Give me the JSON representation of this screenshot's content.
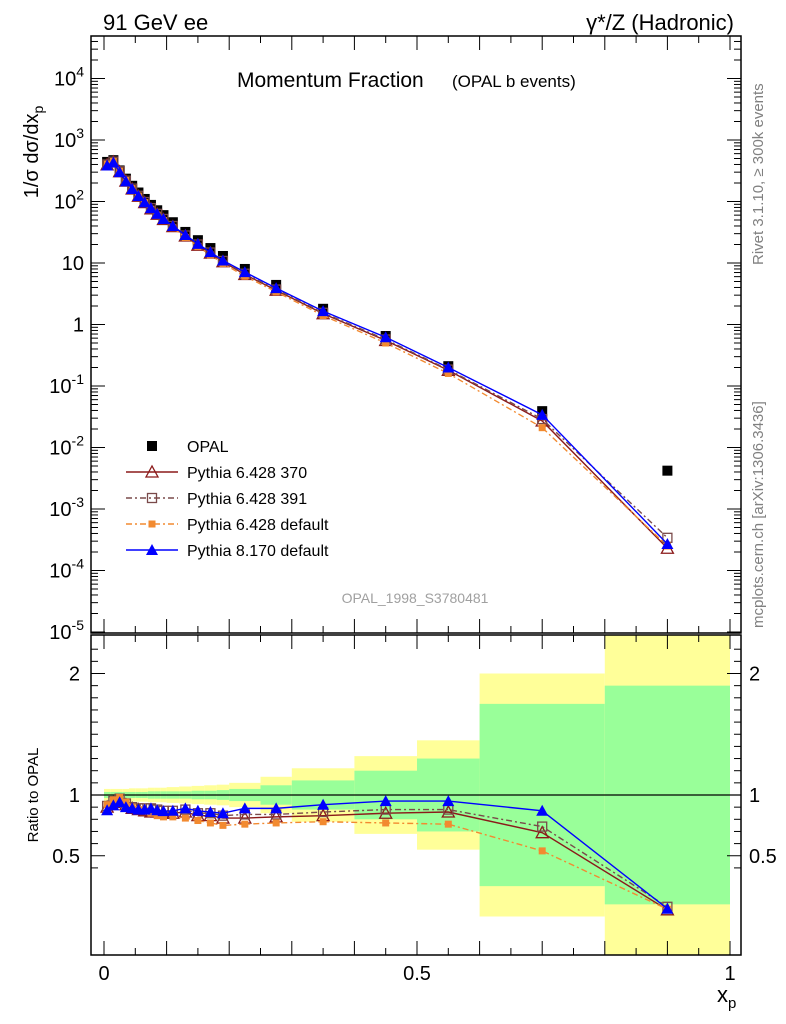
{
  "header": {
    "left": "91 GeV ee",
    "right": "γ*/Z (Hadronic)"
  },
  "side_text": {
    "rivet": "Rivet 3.1.10, ≥ 300k events",
    "mcplots": "mcplots.cern.ch [arXiv:1306.3436]"
  },
  "chart_data": [
    {
      "type": "scatter",
      "title": "Momentum Fraction",
      "subtitle": "(OPAL b events)",
      "ylabel": "1/σ dσ/dx_p",
      "xlabel": "",
      "yscale": "log",
      "ylim": [
        1e-05,
        60000
      ],
      "xlim": [
        -0.02,
        1.0
      ],
      "y_tick_labels": [
        "10^-5",
        "10^-4",
        "10^-3",
        "10^-2",
        "10^-1",
        "1",
        "10",
        "10^2",
        "10^3",
        "10^4"
      ],
      "watermark": "OPAL_1998_S3780481",
      "legend_position": "lower-left",
      "x": [
        0.005,
        0.015,
        0.025,
        0.035,
        0.045,
        0.055,
        0.065,
        0.075,
        0.085,
        0.095,
        0.11,
        0.13,
        0.15,
        0.17,
        0.19,
        0.225,
        0.275,
        0.35,
        0.45,
        0.55,
        0.7,
        0.9
      ],
      "series": [
        {
          "name": "OPAL",
          "color": "#000000",
          "marker": "filled-square",
          "line": "none",
          "values": [
            440,
            470,
            320,
            235,
            180,
            140,
            110,
            88,
            72,
            60,
            46,
            32,
            23.5,
            17.5,
            13,
            8,
            4.4,
            1.8,
            0.65,
            0.21,
            0.039,
            0.0042
          ]
        },
        {
          "name": "Pythia 6.428 370",
          "color": "#8b1a1a",
          "marker": "open-triangle",
          "line": "solid",
          "values": [
            395,
            440,
            305,
            215,
            160,
            122,
            96,
            76,
            62,
            51,
            39,
            27.5,
            19.5,
            14.5,
            10.5,
            6.5,
            3.6,
            1.5,
            0.55,
            0.18,
            0.027,
            0.00023
          ]
        },
        {
          "name": "Pythia 6.428 391",
          "color": "#7a4a4a",
          "marker": "open-square",
          "line": "dashdot",
          "values": [
            400,
            445,
            310,
            218,
            162,
            124,
            98,
            78,
            63,
            52,
            40,
            28,
            20,
            14.8,
            10.8,
            6.7,
            3.7,
            1.55,
            0.57,
            0.185,
            0.029,
            0.00034
          ]
        },
        {
          "name": "Pythia 6.428 default",
          "color": "#f28a30",
          "marker": "filled-square-small",
          "line": "dashdot",
          "values": [
            405,
            450,
            312,
            220,
            162,
            123,
            96,
            75,
            60,
            49,
            37.5,
            26,
            18.5,
            13.5,
            9.8,
            6.1,
            3.4,
            1.4,
            0.5,
            0.16,
            0.021,
            0.00025
          ]
        },
        {
          "name": "Pythia 8.170 default",
          "color": "#0000ff",
          "marker": "filled-triangle",
          "line": "solid",
          "values": [
            385,
            430,
            300,
            212,
            160,
            123,
            97,
            78,
            63,
            52,
            40,
            28.5,
            20.5,
            15,
            11,
            7.1,
            3.9,
            1.65,
            0.62,
            0.2,
            0.034,
            0.00027
          ]
        }
      ]
    },
    {
      "type": "line",
      "ylabel": "Ratio to OPAL",
      "xlabel": "x_p",
      "xlim": [
        -0.02,
        1.0
      ],
      "ylim": [
        0.34,
        2.3
      ],
      "x_tick_labels": [
        "0",
        "0.5",
        "1"
      ],
      "y_tick_labels": [
        "0.5",
        "1",
        "2"
      ],
      "reference_line": 1,
      "uncertainty_bands": {
        "edges": [
          0.0,
          0.01,
          0.02,
          0.03,
          0.04,
          0.05,
          0.06,
          0.07,
          0.08,
          0.09,
          0.1,
          0.12,
          0.14,
          0.16,
          0.18,
          0.2,
          0.25,
          0.3,
          0.4,
          0.5,
          0.6,
          0.8,
          1.0
        ],
        "inner_half_width": [
          0.025,
          0.025,
          0.025,
          0.025,
          0.025,
          0.025,
          0.025,
          0.03,
          0.03,
          0.03,
          0.03,
          0.03,
          0.035,
          0.035,
          0.04,
          0.05,
          0.08,
          0.12,
          0.2,
          0.3,
          0.75,
          0.9
        ],
        "outer_half_width": [
          0.05,
          0.05,
          0.05,
          0.05,
          0.055,
          0.055,
          0.055,
          0.06,
          0.06,
          0.06,
          0.065,
          0.07,
          0.075,
          0.08,
          0.085,
          0.1,
          0.15,
          0.22,
          0.32,
          0.45,
          1.0,
          1.6
        ],
        "inner_color": "#99ff99",
        "outer_color": "#ffff99"
      },
      "series": [
        {
          "name": "Pythia 6.428 370",
          "color": "#8b1a1a",
          "values": [
            0.9,
            0.94,
            0.95,
            0.92,
            0.89,
            0.88,
            0.87,
            0.86,
            0.86,
            0.85,
            0.85,
            0.86,
            0.83,
            0.83,
            0.81,
            0.81,
            0.82,
            0.83,
            0.85,
            0.86,
            0.69,
            0.055
          ]
        },
        {
          "name": "Pythia 6.428 391",
          "color": "#7a4a4a",
          "values": [
            0.91,
            0.95,
            0.97,
            0.93,
            0.9,
            0.89,
            0.89,
            0.89,
            0.88,
            0.87,
            0.87,
            0.88,
            0.85,
            0.85,
            0.83,
            0.84,
            0.84,
            0.86,
            0.88,
            0.88,
            0.74,
            0.08
          ]
        },
        {
          "name": "Pythia 6.428 default",
          "color": "#f28a30",
          "values": [
            0.92,
            0.96,
            0.98,
            0.94,
            0.9,
            0.88,
            0.87,
            0.85,
            0.83,
            0.82,
            0.82,
            0.81,
            0.79,
            0.77,
            0.75,
            0.76,
            0.77,
            0.78,
            0.77,
            0.76,
            0.54,
            0.06
          ]
        },
        {
          "name": "Pythia 8.170 default",
          "color": "#0000ff",
          "values": [
            0.875,
            0.915,
            0.94,
            0.9,
            0.89,
            0.88,
            0.88,
            0.89,
            0.875,
            0.867,
            0.87,
            0.89,
            0.87,
            0.86,
            0.85,
            0.89,
            0.89,
            0.92,
            0.95,
            0.95,
            0.87,
            0.064
          ]
        }
      ]
    }
  ]
}
